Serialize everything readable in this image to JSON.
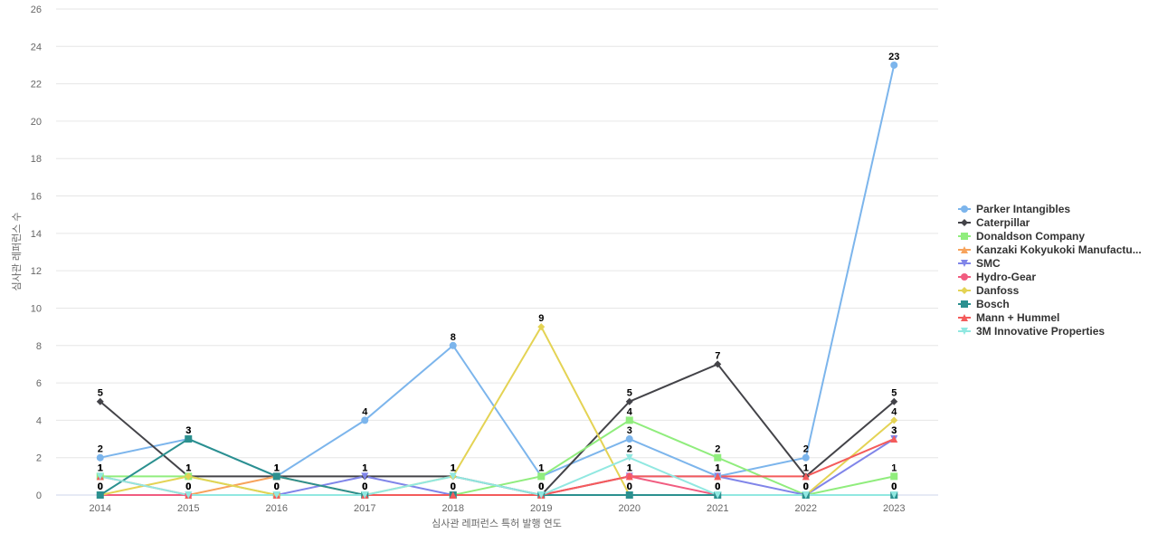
{
  "chart_data": {
    "type": "line",
    "x_label": "심사관 레퍼런스 특허 발행 연도",
    "y_label": "심사관 레퍼런스 수",
    "categories": [
      "2014",
      "2015",
      "2016",
      "2017",
      "2018",
      "2019",
      "2020",
      "2021",
      "2022",
      "2023"
    ],
    "ylim": [
      0,
      26
    ],
    "yticks": [
      0,
      2,
      4,
      6,
      8,
      10,
      12,
      14,
      16,
      18,
      20,
      22,
      24,
      26
    ],
    "grid": true,
    "legend": "right",
    "series": [
      {
        "name": "Parker Intangibles",
        "color": "#7cb5ec",
        "values": [
          2,
          3,
          1,
          4,
          8,
          1,
          3,
          1,
          2,
          23
        ]
      },
      {
        "name": "Caterpillar",
        "color": "#434348",
        "values": [
          5,
          1,
          1,
          1,
          1,
          0,
          5,
          7,
          1,
          5
        ]
      },
      {
        "name": "Donaldson Company",
        "color": "#90ed7d",
        "values": [
          1,
          1,
          0,
          0,
          0,
          1,
          4,
          2,
          0,
          1
        ]
      },
      {
        "name": "Kanzaki Kokyukoki Manufactu...",
        "color": "#f7a35c",
        "values": [
          0,
          0,
          1,
          0,
          0,
          0,
          0,
          0,
          0,
          0
        ]
      },
      {
        "name": "SMC",
        "color": "#8085e9",
        "values": [
          0,
          0,
          0,
          1,
          0,
          0,
          1,
          1,
          0,
          3
        ]
      },
      {
        "name": "Hydro-Gear",
        "color": "#f15c80",
        "values": [
          0,
          0,
          0,
          0,
          0,
          0,
          1,
          0,
          0,
          0
        ]
      },
      {
        "name": "Danfoss",
        "color": "#e4d354",
        "values": [
          0,
          1,
          0,
          0,
          1,
          9,
          0,
          0,
          0,
          4
        ]
      },
      {
        "name": "Bosch",
        "color": "#2b908f",
        "values": [
          0,
          3,
          1,
          0,
          0,
          0,
          0,
          0,
          0,
          0
        ]
      },
      {
        "name": "Mann + Hummel",
        "color": "#f45b5b",
        "values": [
          1,
          0,
          0,
          0,
          0,
          0,
          1,
          1,
          1,
          3
        ]
      },
      {
        "name": "3M Innovative Properties",
        "color": "#91e8e1",
        "values": [
          1,
          0,
          0,
          0,
          1,
          0,
          2,
          0,
          0,
          0
        ]
      }
    ]
  }
}
